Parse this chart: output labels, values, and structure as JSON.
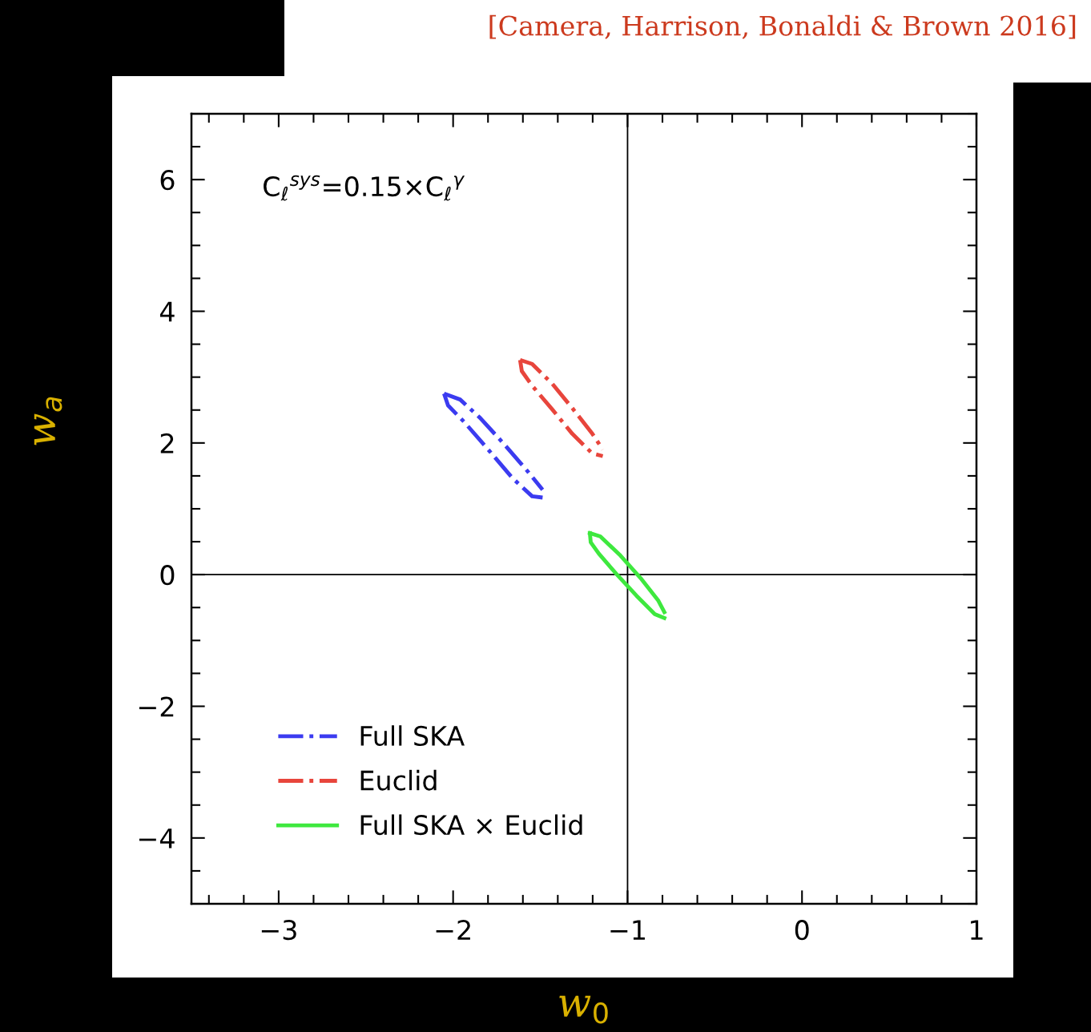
{
  "chart_data": {
    "type": "line",
    "xlabel": "w$_{0}$",
    "ylabel": "w$_{a}$",
    "annotations": [
      "[Camera, Harrison, Bonaldi & Brown 2016]",
      "C$_{ℓ}$$^{sys}$=0.15×C$_{ℓ}$$^{γ}$"
    ],
    "xlim": [
      -3.5,
      1
    ],
    "ylim": [
      -5,
      7
    ],
    "xticks": [
      {
        "value": -3,
        "label": "−3"
      },
      {
        "value": -2,
        "label": "−2"
      },
      {
        "value": -1,
        "label": "−1"
      },
      0,
      1
    ],
    "yticks": [
      {
        "value": -4,
        "label": "−4"
      },
      {
        "value": -2,
        "label": "−2"
      },
      0,
      2,
      4,
      6
    ],
    "ref_lines": [
      {
        "axis": "x",
        "value": -1,
        "color": "#000000"
      },
      {
        "axis": "y",
        "value": 0,
        "color": "#000000"
      }
    ],
    "grid": false,
    "legend": "bottom left",
    "marker": "none",
    "series": [
      {
        "name": "Full SKA",
        "color": "#3b3bf0",
        "line_style": "dashdot",
        "x": [
          -2.052,
          -1.96,
          -1.845,
          -1.707,
          -1.57,
          -1.487
        ],
        "values": [
          2.75,
          2.66,
          2.38,
          1.98,
          1.56,
          1.29
        ]
      },
      {
        "color": "#3b3bf0",
        "line_style": "dashdot",
        "x": [
          -2.052,
          -2.029,
          -1.937,
          -1.799,
          -1.661,
          -1.547,
          -1.487
        ],
        "values": [
          2.75,
          2.57,
          2.32,
          1.9,
          1.47,
          1.19,
          1.17
        ]
      },
      {
        "name": "Euclid",
        "color": "#e8453c",
        "line_style": "dashdot",
        "x": [
          -1.616,
          -1.547,
          -1.432,
          -1.317,
          -1.202,
          -1.142
        ],
        "values": [
          3.26,
          3.2,
          2.9,
          2.53,
          2.14,
          1.9
        ]
      },
      {
        "color": "#e8453c",
        "line_style": "dashdot",
        "x": [
          -1.616,
          -1.606,
          -1.547,
          -1.432,
          -1.317,
          -1.202,
          -1.142
        ],
        "values": [
          3.26,
          3.09,
          2.87,
          2.51,
          2.14,
          1.84,
          1.8
        ]
      },
      {
        "name": "Full SKA × Euclid",
        "color": "#3ee83e",
        "line_style": "solid",
        "x": [
          -1.216,
          -1.156,
          -1.041,
          -0.926,
          -0.825,
          -0.789
        ],
        "values": [
          0.63,
          0.58,
          0.29,
          -0.05,
          -0.39,
          -0.57
        ]
      },
      {
        "color": "#3ee83e",
        "line_style": "solid",
        "x": [
          -1.216,
          -1.211,
          -1.165,
          -1.064,
          -0.949,
          -0.844,
          -0.789
        ],
        "values": [
          0.63,
          0.49,
          0.32,
          0.01,
          -0.32,
          -0.6,
          -0.66
        ]
      }
    ]
  }
}
